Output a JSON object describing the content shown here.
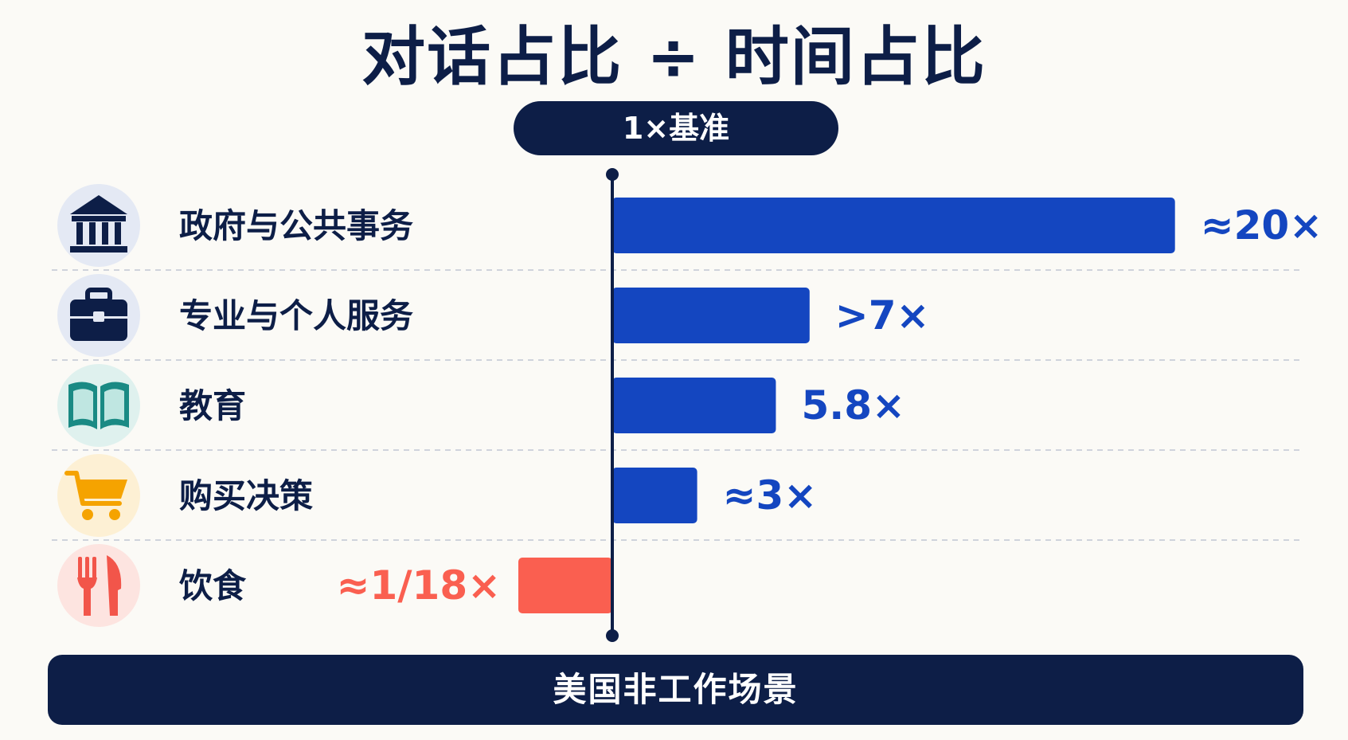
{
  "title": "对话占比 ÷ 时间占比",
  "baseline_label": "1×基准",
  "footer": "美国非工作场景",
  "colors": {
    "navy": "#0d1e47",
    "bar_positive": "#1446c0",
    "bar_negative": "#fa5f50"
  },
  "chart_data": {
    "type": "bar",
    "orientation": "horizontal",
    "baseline": 1,
    "categories": [
      "政府与公共事务",
      "专业与个人服务",
      "教育",
      "购买决策",
      "饮食"
    ],
    "values": [
      20,
      7,
      5.8,
      3,
      0.0556
    ],
    "value_labels": [
      "≈20×",
      ">7×",
      "5.8×",
      "≈3×",
      "≈1/18×"
    ],
    "icons": [
      "bank-icon",
      "briefcase-icon",
      "book-icon",
      "shopping-cart-icon",
      "fork-knife-icon"
    ],
    "icon_backgrounds": [
      "#e4e9f4",
      "#e4e9f4",
      "#dff1ee",
      "#fdf0d4",
      "#fde4e0"
    ]
  }
}
